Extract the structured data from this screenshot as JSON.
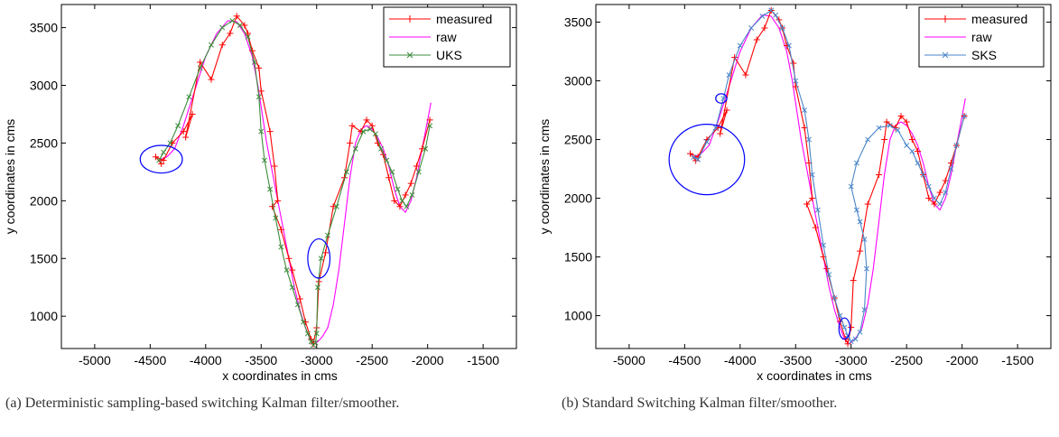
{
  "chart_data": [
    {
      "type": "line",
      "caption": "(a) Deterministic sampling-based switching Kalman filter/smoother.",
      "xlabel": "x coordinates in cms",
      "ylabel": "y coordinates in cms",
      "xlim": [
        -5300,
        -1200
      ],
      "ylim": [
        720,
        3700
      ],
      "xticks": [
        -5000,
        -4500,
        -4000,
        -3500,
        -3000,
        -2500,
        -2000,
        -1500
      ],
      "yticks": [
        1000,
        1500,
        2000,
        2500,
        3000,
        3500
      ],
      "legend_position": "top-right",
      "series": [
        {
          "name": "measured",
          "color": "#ff0000",
          "marker": "+",
          "x": [
            -4400,
            -4450,
            -4380,
            -4300,
            -4200,
            -4120,
            -4180,
            -4050,
            -3950,
            -3850,
            -3780,
            -3720,
            -3650,
            -3620,
            -3580,
            -3520,
            -3500,
            -3420,
            -3380,
            -3350,
            -3400,
            -3320,
            -3250,
            -3220,
            -3150,
            -3100,
            -3050,
            -3030,
            -3000,
            -2980,
            -2920,
            -2850,
            -2750,
            -2700,
            -2680,
            -2600,
            -2550,
            -2500,
            -2450,
            -2400,
            -2350,
            -2300,
            -2250,
            -2200,
            -2150,
            -2100,
            -2050,
            -1980
          ],
          "y": [
            2320,
            2380,
            2350,
            2500,
            2600,
            2750,
            2550,
            3200,
            3050,
            3350,
            3450,
            3600,
            3520,
            3450,
            3300,
            3150,
            2950,
            2600,
            2300,
            2000,
            1950,
            1750,
            1500,
            1400,
            1150,
            950,
            800,
            760,
            900,
            1300,
            1550,
            1950,
            2200,
            2500,
            2650,
            2600,
            2700,
            2650,
            2500,
            2400,
            2200,
            2000,
            1950,
            2050,
            2150,
            2300,
            2450,
            2700
          ]
        },
        {
          "name": "raw",
          "color": "#ff00ff",
          "marker": "none",
          "x": [
            -4420,
            -4350,
            -4280,
            -4200,
            -4100,
            -4000,
            -3900,
            -3800,
            -3720,
            -3650,
            -3580,
            -3530,
            -3490,
            -3450,
            -3400,
            -3350,
            -3300,
            -3250,
            -3200,
            -3150,
            -3100,
            -3060,
            -3020,
            -2990,
            -2950,
            -2900,
            -2850,
            -2800,
            -2750,
            -2700,
            -2650,
            -2600,
            -2550,
            -2500,
            -2450,
            -2400,
            -2350,
            -2300,
            -2250,
            -2200,
            -2150,
            -2100,
            -2050,
            -2000,
            -1970
          ],
          "y": [
            2350,
            2380,
            2450,
            2650,
            2950,
            3250,
            3450,
            3560,
            3550,
            3450,
            3250,
            3000,
            2750,
            2500,
            2250,
            2000,
            1750,
            1500,
            1250,
            1050,
            900,
            800,
            760,
            780,
            820,
            900,
            1100,
            1400,
            1800,
            2200,
            2500,
            2620,
            2650,
            2620,
            2550,
            2450,
            2300,
            2100,
            1950,
            1900,
            2000,
            2200,
            2450,
            2700,
            2850
          ]
        },
        {
          "name": "UKS",
          "color": "#3c8c3c",
          "marker": "x",
          "x": [
            -4420,
            -4380,
            -4320,
            -4250,
            -4150,
            -4050,
            -3950,
            -3850,
            -3760,
            -3690,
            -3620,
            -3560,
            -3520,
            -3500,
            -3470,
            -3420,
            -3370,
            -3320,
            -3270,
            -3220,
            -3170,
            -3120,
            -3080,
            -3050,
            -3030,
            -3010,
            -3000,
            -2990,
            -2960,
            -2900,
            -2820,
            -2730,
            -2650,
            -2580,
            -2520,
            -2470,
            -2420,
            -2370,
            -2320,
            -2270,
            -2230,
            -2190,
            -2140,
            -2080,
            -2020,
            -1980
          ],
          "y": [
            2350,
            2420,
            2500,
            2650,
            2900,
            3150,
            3350,
            3500,
            3560,
            3520,
            3420,
            3200,
            2900,
            2600,
            2350,
            2100,
            1850,
            1600,
            1400,
            1250,
            1100,
            950,
            850,
            780,
            750,
            770,
            850,
            1250,
            1500,
            1700,
            1950,
            2250,
            2450,
            2600,
            2620,
            2580,
            2450,
            2350,
            2250,
            2100,
            2000,
            1950,
            2050,
            2250,
            2450,
            2650
          ]
        }
      ],
      "ellipses": [
        {
          "cx": -4400,
          "cy": 2360,
          "rx": 190,
          "ry": 120
        },
        {
          "cx": -2980,
          "cy": 1500,
          "rx": 100,
          "ry": 170
        }
      ]
    },
    {
      "type": "line",
      "caption": "(b) Standard Switching Kalman filter/smoother.",
      "xlabel": "x coordinates in cms",
      "ylabel": "y coordinates in cms",
      "xlim": [
        -5300,
        -1200
      ],
      "ylim": [
        720,
        3650
      ],
      "xticks": [
        -5000,
        -4500,
        -4000,
        -3500,
        -3000,
        -2500,
        -2000,
        -1500
      ],
      "yticks": [
        1000,
        1500,
        2000,
        2500,
        3000,
        3500
      ],
      "legend_position": "top-right",
      "series": [
        {
          "name": "measured",
          "color": "#ff0000",
          "marker": "+",
          "x": [
            -4400,
            -4450,
            -4380,
            -4300,
            -4200,
            -4120,
            -4180,
            -4050,
            -3950,
            -3850,
            -3780,
            -3720,
            -3650,
            -3620,
            -3580,
            -3520,
            -3500,
            -3420,
            -3380,
            -3350,
            -3400,
            -3320,
            -3250,
            -3220,
            -3150,
            -3100,
            -3050,
            -3030,
            -3000,
            -2980,
            -2920,
            -2850,
            -2750,
            -2700,
            -2680,
            -2600,
            -2550,
            -2500,
            -2450,
            -2400,
            -2350,
            -2300,
            -2250,
            -2200,
            -2150,
            -2100,
            -2050,
            -1980
          ],
          "y": [
            2320,
            2380,
            2350,
            2500,
            2600,
            2750,
            2550,
            3200,
            3050,
            3350,
            3450,
            3600,
            3520,
            3450,
            3300,
            3150,
            2950,
            2600,
            2300,
            2000,
            1950,
            1750,
            1500,
            1400,
            1150,
            950,
            800,
            760,
            900,
            1300,
            1550,
            1950,
            2200,
            2500,
            2650,
            2600,
            2700,
            2650,
            2500,
            2400,
            2200,
            2000,
            1950,
            2050,
            2150,
            2300,
            2450,
            2700
          ]
        },
        {
          "name": "raw",
          "color": "#ff00ff",
          "marker": "none",
          "x": [
            -4420,
            -4350,
            -4280,
            -4200,
            -4100,
            -4000,
            -3900,
            -3800,
            -3720,
            -3650,
            -3580,
            -3530,
            -3490,
            -3450,
            -3400,
            -3350,
            -3300,
            -3250,
            -3200,
            -3150,
            -3100,
            -3060,
            -3020,
            -2990,
            -2950,
            -2900,
            -2850,
            -2800,
            -2750,
            -2700,
            -2650,
            -2600,
            -2550,
            -2500,
            -2450,
            -2400,
            -2350,
            -2300,
            -2250,
            -2200,
            -2150,
            -2100,
            -2050,
            -2000,
            -1970
          ],
          "y": [
            2350,
            2380,
            2450,
            2650,
            2950,
            3250,
            3450,
            3560,
            3550,
            3450,
            3250,
            3000,
            2750,
            2500,
            2250,
            2000,
            1750,
            1500,
            1250,
            1050,
            900,
            800,
            760,
            780,
            820,
            900,
            1100,
            1400,
            1800,
            2200,
            2500,
            2620,
            2650,
            2620,
            2550,
            2450,
            2300,
            2100,
            1950,
            1900,
            2000,
            2200,
            2450,
            2700,
            2850
          ]
        },
        {
          "name": "SKS",
          "color": "#4a86c8",
          "marker": "x",
          "x": [
            -4420,
            -4380,
            -4300,
            -4220,
            -4150,
            -4100,
            -4000,
            -3900,
            -3800,
            -3720,
            -3680,
            -3620,
            -3560,
            -3500,
            -3420,
            -3380,
            -3350,
            -3300,
            -3250,
            -3200,
            -3150,
            -3100,
            -3060,
            -3030,
            -3000,
            -2960,
            -2920,
            -2880,
            -2860,
            -2880,
            -2920,
            -2950,
            -3000,
            -2950,
            -2850,
            -2750,
            -2650,
            -2580,
            -2500,
            -2450,
            -2400,
            -2350,
            -2300,
            -2250,
            -2200,
            -2150,
            -2100,
            -2050,
            -1980
          ],
          "y": [
            2350,
            2330,
            2480,
            2600,
            2850,
            3050,
            3300,
            3450,
            3550,
            3600,
            3560,
            3450,
            3300,
            3000,
            2750,
            2500,
            2200,
            1900,
            1600,
            1350,
            1150,
            1000,
            900,
            830,
            780,
            800,
            860,
            1050,
            1400,
            1650,
            1800,
            1900,
            2100,
            2300,
            2500,
            2600,
            2620,
            2580,
            2450,
            2400,
            2300,
            2200,
            2100,
            2000,
            1950,
            2050,
            2250,
            2450,
            2700
          ]
        }
      ],
      "ellipses": [
        {
          "cx": -4300,
          "cy": 2330,
          "rx": 340,
          "ry": 300
        },
        {
          "cx": -4170,
          "cy": 2850,
          "rx": 50,
          "ry": 40
        },
        {
          "cx": -3060,
          "cy": 890,
          "rx": 50,
          "ry": 90
        }
      ]
    }
  ]
}
